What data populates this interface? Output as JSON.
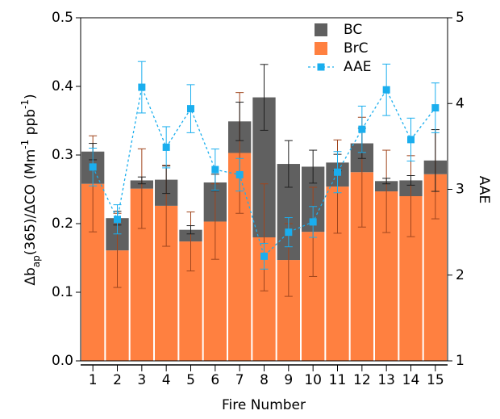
{
  "chart_data": {
    "type": "bar",
    "xlabel": "Fire Number",
    "ylabel_parts": [
      "Δb",
      "ap",
      "(365)/ΔCO (Mm",
      "-1",
      " ppb",
      "-1",
      ")"
    ],
    "y2label": "AAE",
    "x": [
      1,
      2,
      3,
      4,
      5,
      6,
      7,
      8,
      9,
      10,
      11,
      12,
      13,
      14,
      15
    ],
    "xlim": [
      0.5,
      15.5
    ],
    "xticks": [
      1,
      2,
      3,
      4,
      5,
      6,
      7,
      8,
      9,
      10,
      11,
      12,
      13,
      14,
      15
    ],
    "ylim": [
      0,
      0.5
    ],
    "yticks": [
      {
        "value": 0,
        "label": "0.0"
      },
      0.1,
      0.2,
      0.3,
      0.4,
      0.5
    ],
    "y2lim": [
      1,
      5
    ],
    "y2ticks": [
      1,
      2,
      3,
      4,
      5
    ],
    "series": [
      {
        "name": "BC",
        "type": "bar",
        "color": "#606060",
        "error_color": "#202020",
        "values": [
          0.047,
          0.047,
          0.012,
          0.038,
          0.017,
          0.057,
          0.046,
          0.204,
          0.14,
          0.095,
          0.035,
          0.042,
          0.015,
          0.023,
          0.02
        ],
        "errors": [
          0.012,
          0.01,
          0.005,
          0.02,
          0.006,
          0.012,
          0.028,
          0.048,
          0.034,
          0.024,
          0.012,
          0.022,
          0.004,
          0.007,
          0.045
        ]
      },
      {
        "name": "BrC",
        "type": "bar",
        "color": "#ff8040",
        "error_color": "#a0451d",
        "values": [
          0.258,
          0.161,
          0.251,
          0.226,
          0.174,
          0.203,
          0.303,
          0.18,
          0.147,
          0.188,
          0.254,
          0.275,
          0.247,
          0.24,
          0.272
        ],
        "errors": [
          0.07,
          0.054,
          0.058,
          0.059,
          0.043,
          0.055,
          0.088,
          0.078,
          0.053,
          0.065,
          0.068,
          0.08,
          0.06,
          0.059,
          0.065
        ]
      },
      {
        "name": "AAE",
        "type": "line",
        "axis": "y2",
        "color": "#1aaeee",
        "error_color": "#1aaeee",
        "values": [
          3.26,
          2.65,
          4.19,
          3.49,
          3.94,
          3.23,
          3.17,
          2.22,
          2.5,
          2.62,
          3.2,
          3.7,
          4.16,
          3.58,
          3.95
        ],
        "errors": [
          0.22,
          0.17,
          0.3,
          0.24,
          0.28,
          0.24,
          0.19,
          0.15,
          0.17,
          0.18,
          0.24,
          0.27,
          0.3,
          0.25,
          0.29
        ]
      }
    ]
  }
}
